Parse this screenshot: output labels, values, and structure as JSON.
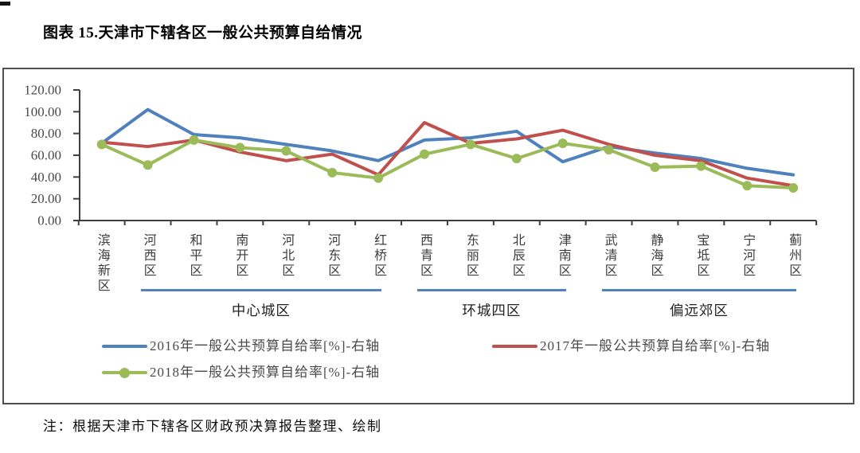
{
  "page": {
    "title": "图表 15.天津市下辖各区一般公共预算自给情况",
    "footnote": "注：根据天津市下辖各区财政预决算报告整理、绘制"
  },
  "chart_data": {
    "type": "line",
    "title": "图表 15.天津市下辖各区一般公共预算自给情况",
    "xlabel": "",
    "ylabel": "",
    "grid": false,
    "legend_position": "bottom",
    "axis_color": "#3f3f3f",
    "categories": [
      "滨海新区",
      "河西区",
      "和平区",
      "南开区",
      "河北区",
      "河东区",
      "红桥区",
      "西青区",
      "东丽区",
      "北辰区",
      "津南区",
      "武清区",
      "静海区",
      "宝坻区",
      "宁河区",
      "蓟州区"
    ],
    "series": [
      {
        "name": "2016年一般公共预算自给率[%]-右轴",
        "color": "#4F81BD",
        "marker": "none",
        "values": [
          71,
          102,
          79,
          76,
          70,
          64,
          55,
          74,
          76,
          82,
          54,
          68,
          62,
          57,
          48,
          42
        ]
      },
      {
        "name": "2017年一般公共预算自给率[%]-右轴",
        "color": "#C0504D",
        "marker": "none",
        "values": [
          72,
          68,
          74,
          63,
          55,
          61,
          42,
          90,
          71,
          75,
          83,
          70,
          60,
          55,
          39,
          32
        ]
      },
      {
        "name": "2018年一般公共预算自给率[%]-右轴",
        "color": "#9BBB59",
        "marker": "circle",
        "values": [
          70,
          51,
          74,
          67,
          64,
          44,
          39,
          61,
          70,
          57,
          71,
          65,
          49,
          50,
          32,
          30
        ]
      }
    ],
    "y_axis": {
      "min": 0,
      "max": 120,
      "step": 20,
      "ticks": [
        {
          "label": "120.00",
          "value": 120
        },
        {
          "label": "100.00",
          "value": 100
        },
        {
          "label": "80.00",
          "value": 80
        },
        {
          "label": "60.00",
          "value": 60
        },
        {
          "label": "40.00",
          "value": 40
        },
        {
          "label": "20.00",
          "value": 20
        },
        {
          "label": "0.00",
          "value": 0
        }
      ]
    },
    "groups": [
      {
        "label": "中心城区",
        "start_index": 1,
        "end_index": 6
      },
      {
        "label": "环城四区",
        "start_index": 7,
        "end_index": 10
      },
      {
        "label": "偏远郊区",
        "start_index": 11,
        "end_index": 15
      }
    ],
    "group_underline_color": "#4F81BD"
  }
}
